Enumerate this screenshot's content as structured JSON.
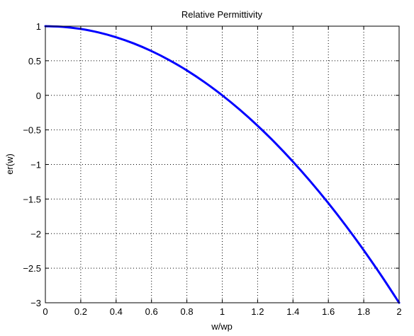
{
  "chart_data": {
    "type": "line",
    "title": "Relative Permittivity",
    "xlabel": "w/wp",
    "ylabel": "er(w)",
    "xlim": [
      0,
      2
    ],
    "ylim": [
      -3,
      1
    ],
    "grid": true,
    "xticks": [
      0,
      0.2,
      0.4,
      0.6,
      0.8,
      1,
      1.2,
      1.4,
      1.6,
      1.8,
      2
    ],
    "xtick_labels": [
      "0",
      "0.2",
      "0.4",
      "0.6",
      "0.8",
      "1",
      "1.2",
      "1.4",
      "1.6",
      "1.8",
      "2"
    ],
    "yticks": [
      1,
      0.5,
      0,
      -0.5,
      -1,
      -1.5,
      -2,
      -2.5,
      -3
    ],
    "ytick_labels": [
      "1",
      "0.5",
      "0",
      "−0.5",
      "−1",
      "−1.5",
      "−2",
      "−2.5",
      "−3"
    ],
    "series": [
      {
        "color": "#0000ff",
        "x": [
          0,
          0.1,
          0.2,
          0.3,
          0.4,
          0.5,
          0.6,
          0.7,
          0.8,
          0.9,
          1.0,
          1.1,
          1.2,
          1.3,
          1.4,
          1.5,
          1.6,
          1.7,
          1.8,
          1.9,
          2.0
        ],
        "y": [
          1,
          0.99,
          0.96,
          0.91,
          0.84,
          0.75,
          0.64,
          0.51,
          0.36,
          0.19,
          0,
          -0.21,
          -0.44,
          -0.69,
          -0.96,
          -1.25,
          -1.56,
          -1.89,
          -2.24,
          -2.61,
          -3
        ]
      }
    ]
  }
}
